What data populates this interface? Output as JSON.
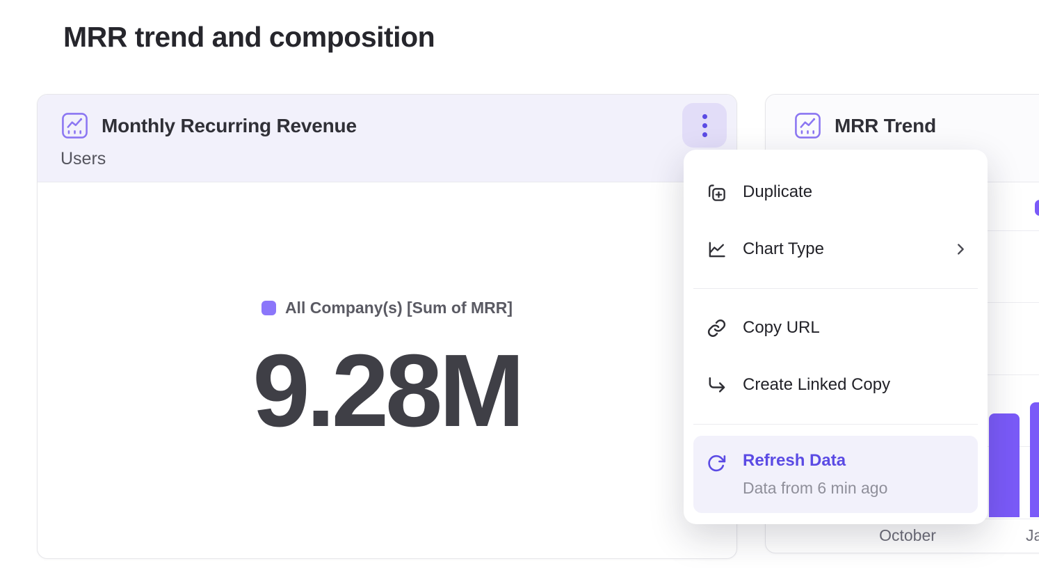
{
  "page": {
    "title": "MRR trend and composition"
  },
  "colors": {
    "accent": "#5b4be4",
    "bar_purple": "#7a5af8",
    "swatch_purple": "#8b76fa",
    "icon_purple": "#8b76f2",
    "header_bg": "#f2f1fb",
    "highlight_bg": "#f2f1fb",
    "kebab_bg": "#e2ddf8"
  },
  "mrr_card": {
    "title": "Monthly Recurring Revenue",
    "subtitle": "Users",
    "legend_label": "All Company(s) [Sum of MRR]",
    "value": "9.28M"
  },
  "trend_card": {
    "title": "MRR Trend",
    "x_labels": [
      "October",
      "January"
    ]
  },
  "context_menu": {
    "items": [
      {
        "label": "Duplicate",
        "icon": "duplicate-icon"
      },
      {
        "label": "Chart Type",
        "icon": "chart-type-icon",
        "has_submenu": true
      },
      {
        "label": "Copy URL",
        "icon": "link-icon"
      },
      {
        "label": "Create Linked Copy",
        "icon": "linked-copy-icon"
      }
    ],
    "refresh": {
      "label": "Refresh Data",
      "status": "Data from 6 min ago"
    }
  },
  "chart_data": [
    {
      "type": "kpi",
      "title": "Monthly Recurring Revenue",
      "subtitle": "Users",
      "legend": [
        "All Company(s) [Sum of MRR]"
      ],
      "value": "9.28M"
    },
    {
      "type": "bar",
      "title": "MRR Trend",
      "visible_categories": [
        "October",
        "January"
      ],
      "series": [
        {
          "name": "All Company(s) [Sum of MRR]",
          "visible_values_relative": [
            0.36,
            0.4
          ]
        }
      ],
      "grid": true,
      "ylim_note": "no axis value labels visible; bar heights given as fraction of plot height",
      "note": "chart mostly occluded by the open context menu; two bars visible at right edge"
    }
  ]
}
